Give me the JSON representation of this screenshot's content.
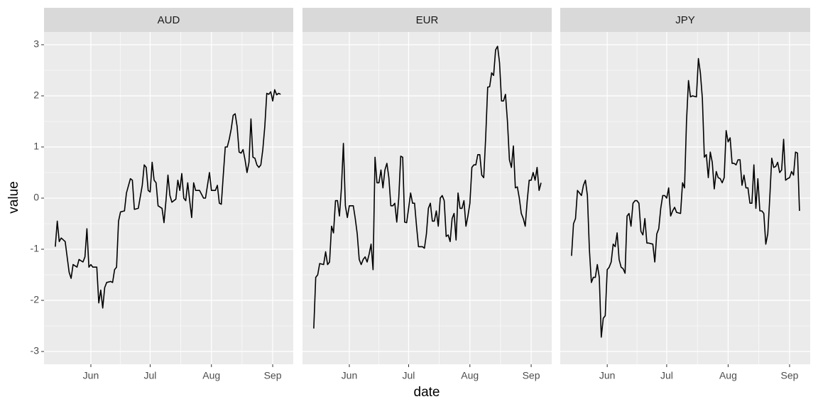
{
  "xlabel": "date",
  "ylabel": "value",
  "chart_data": [
    {
      "type": "line",
      "title": "AUD",
      "color": "#000000",
      "grid": true,
      "xlim": [
        128.3,
        254.4
      ],
      "xticks": [
        {
          "value": 152,
          "label": "Jun"
        },
        {
          "value": 182,
          "label": "Jul"
        },
        {
          "value": 213,
          "label": "Aug"
        },
        {
          "value": 244,
          "label": "Sep"
        }
      ],
      "ylim": [
        -3.25,
        3.25
      ],
      "yticks": [
        -3,
        -2,
        -1,
        0,
        1,
        2,
        3
      ],
      "x": [
        134,
        135,
        136,
        137,
        139,
        141,
        142,
        143,
        145,
        146,
        148,
        149,
        150,
        151,
        152,
        153,
        155,
        156,
        157,
        158,
        159,
        160,
        162,
        163,
        164,
        165,
        166,
        167,
        169,
        170,
        172,
        173,
        174,
        176,
        178,
        179,
        180,
        181,
        182,
        183,
        184,
        185,
        186,
        188,
        189,
        190,
        191,
        192,
        193,
        195,
        196,
        197,
        198,
        199,
        200,
        201,
        202,
        203,
        204,
        205,
        207,
        209,
        210,
        212,
        213,
        215,
        216,
        217,
        218,
        219,
        220,
        221,
        222,
        223,
        224,
        225,
        226,
        227,
        228,
        229,
        230,
        231,
        232,
        233,
        234,
        235,
        236,
        237,
        238,
        239,
        240,
        241,
        242,
        243,
        244,
        245,
        246,
        247,
        248
      ],
      "values": [
        -0.95,
        -0.45,
        -0.85,
        -0.78,
        -0.85,
        -1.45,
        -1.57,
        -1.3,
        -1.35,
        -1.2,
        -1.25,
        -1.15,
        -0.6,
        -1.35,
        -1.3,
        -1.35,
        -1.35,
        -2.05,
        -1.8,
        -2.15,
        -1.75,
        -1.65,
        -1.63,
        -1.65,
        -1.4,
        -1.35,
        -0.45,
        -0.27,
        -0.25,
        0.1,
        0.38,
        0.35,
        -0.22,
        -0.2,
        0.25,
        0.65,
        0.6,
        0.15,
        0.12,
        0.7,
        0.35,
        0.3,
        -0.15,
        -0.2,
        -0.48,
        -0.05,
        0.45,
        0.05,
        -0.08,
        -0.02,
        0.35,
        0.15,
        0.48,
        0.0,
        -0.05,
        0.3,
        -0.05,
        -0.38,
        0.3,
        0.15,
        0.15,
        0.0,
        0.0,
        0.5,
        0.15,
        0.15,
        0.25,
        -0.1,
        -0.12,
        0.45,
        1.0,
        1.0,
        1.15,
        1.35,
        1.62,
        1.65,
        1.4,
        0.9,
        0.88,
        0.95,
        0.75,
        0.5,
        0.7,
        1.55,
        0.8,
        0.78,
        0.65,
        0.6,
        0.65,
        0.95,
        1.4,
        2.05,
        2.03,
        2.08,
        1.9,
        2.12,
        2.02,
        2.05,
        2.03
      ]
    },
    {
      "type": "line",
      "title": "EUR",
      "color": "#000000",
      "grid": true,
      "xlim": [
        128.3,
        254.4
      ],
      "xticks": [
        {
          "value": 152,
          "label": "Jun"
        },
        {
          "value": 182,
          "label": "Jul"
        },
        {
          "value": 213,
          "label": "Aug"
        },
        {
          "value": 244,
          "label": "Sep"
        }
      ],
      "ylim": [
        -3.25,
        3.25
      ],
      "yticks": [
        -3,
        -2,
        -1,
        0,
        1,
        2,
        3
      ],
      "x": [
        134,
        135,
        136,
        137,
        139,
        140,
        141,
        142,
        143,
        144,
        145,
        146,
        147,
        148,
        149,
        150,
        151,
        152,
        154,
        155,
        156,
        157,
        158,
        159,
        160,
        161,
        162,
        163,
        164,
        165,
        166,
        167,
        168,
        169,
        170,
        171,
        172,
        173,
        174,
        175,
        176,
        177,
        178,
        179,
        180,
        181,
        182,
        183,
        184,
        185,
        186,
        187,
        189,
        190,
        191,
        192,
        193,
        194,
        195,
        196,
        197,
        198,
        199,
        200,
        201,
        202,
        203,
        204,
        205,
        206,
        207,
        208,
        209,
        210,
        211,
        212,
        213,
        214,
        215,
        216,
        217,
        218,
        219,
        220,
        221,
        222,
        223,
        224,
        225,
        226,
        227,
        228,
        229,
        230,
        231,
        232,
        233,
        234,
        235,
        236,
        237,
        238,
        239,
        240,
        241,
        242,
        243,
        244,
        245,
        246,
        247,
        248,
        249
      ],
      "values": [
        -2.55,
        -1.55,
        -1.5,
        -1.28,
        -1.3,
        -1.05,
        -1.3,
        -1.25,
        -0.55,
        -0.68,
        -0.05,
        -0.05,
        -0.35,
        0.2,
        1.07,
        -0.15,
        -0.38,
        -0.15,
        -0.15,
        -0.4,
        -0.7,
        -1.2,
        -1.3,
        -1.2,
        -1.15,
        -1.25,
        -1.1,
        -0.9,
        -1.4,
        0.8,
        0.3,
        0.3,
        0.55,
        0.2,
        0.55,
        0.68,
        0.4,
        -0.15,
        -0.15,
        -0.1,
        -0.47,
        0.0,
        0.82,
        0.8,
        -0.47,
        -0.48,
        -0.2,
        0.1,
        -0.1,
        -0.1,
        -0.55,
        -0.95,
        -0.95,
        -0.98,
        -0.7,
        -0.2,
        -0.1,
        -0.45,
        -0.45,
        -0.25,
        -0.55,
        0.0,
        0.05,
        -0.05,
        -0.75,
        -0.72,
        -0.85,
        -0.4,
        -0.3,
        -0.82,
        0.1,
        -0.2,
        -0.2,
        -0.05,
        -0.55,
        -0.35,
        -0.1,
        0.6,
        0.65,
        0.65,
        0.85,
        0.85,
        0.45,
        0.4,
        1.2,
        2.17,
        2.18,
        2.45,
        2.4,
        2.9,
        2.97,
        2.65,
        1.9,
        1.9,
        2.03,
        1.5,
        0.75,
        0.6,
        1.02,
        0.2,
        0.22,
        0.0,
        -0.3,
        -0.4,
        -0.55,
        -0.05,
        0.35,
        0.35,
        0.5,
        0.35,
        0.6,
        0.15,
        0.3
      ]
    },
    {
      "type": "line",
      "title": "JPY",
      "color": "#000000",
      "grid": true,
      "xlim": [
        128.3,
        254.4
      ],
      "xticks": [
        {
          "value": 152,
          "label": "Jun"
        },
        {
          "value": 182,
          "label": "Jul"
        },
        {
          "value": 213,
          "label": "Aug"
        },
        {
          "value": 244,
          "label": "Sep"
        }
      ],
      "ylim": [
        -3.25,
        3.25
      ],
      "yticks": [
        -3,
        -2,
        -1,
        0,
        1,
        2,
        3
      ],
      "x": [
        134,
        135,
        136,
        137,
        138,
        139,
        140,
        141,
        142,
        143,
        144,
        145,
        146,
        147,
        148,
        149,
        150,
        151,
        152,
        153,
        154,
        155,
        156,
        157,
        158,
        159,
        160,
        161,
        162,
        163,
        164,
        165,
        166,
        167,
        168,
        169,
        170,
        171,
        172,
        173,
        175,
        176,
        177,
        178,
        179,
        180,
        181,
        182,
        183,
        184,
        185,
        186,
        187,
        189,
        190,
        191,
        192,
        193,
        194,
        195,
        197,
        198,
        199,
        200,
        201,
        202,
        203,
        204,
        205,
        206,
        207,
        208,
        209,
        210,
        211,
        212,
        213,
        214,
        215,
        216,
        217,
        218,
        219,
        220,
        221,
        222,
        223,
        224,
        225,
        226,
        227,
        228,
        229,
        230,
        231,
        232,
        233,
        234,
        235,
        236,
        237,
        238,
        239,
        240,
        241,
        242,
        243,
        244,
        245,
        246,
        247,
        248,
        249
      ],
      "values": [
        -1.13,
        -0.5,
        -0.4,
        0.15,
        0.1,
        0.05,
        0.25,
        0.35,
        0.05,
        -1.0,
        -1.65,
        -1.55,
        -1.55,
        -1.3,
        -1.55,
        -2.72,
        -2.35,
        -2.3,
        -1.4,
        -1.35,
        -1.25,
        -0.9,
        -0.95,
        -0.68,
        -1.2,
        -1.35,
        -1.38,
        -1.47,
        -0.35,
        -0.3,
        -0.55,
        -0.1,
        -0.05,
        -0.05,
        -0.1,
        -0.65,
        -0.72,
        -0.4,
        -0.88,
        -0.88,
        -0.9,
        -1.25,
        -0.7,
        -0.6,
        -0.2,
        0.05,
        0.05,
        0.0,
        0.2,
        -0.35,
        -0.25,
        -0.18,
        -0.28,
        -0.3,
        0.3,
        0.2,
        1.5,
        2.3,
        1.98,
        2.0,
        1.98,
        2.73,
        2.45,
        1.95,
        0.8,
        0.85,
        0.4,
        0.9,
        0.7,
        0.18,
        0.52,
        0.4,
        0.38,
        0.3,
        0.4,
        1.32,
        1.1,
        1.18,
        0.68,
        0.68,
        0.65,
        0.75,
        0.75,
        0.25,
        0.45,
        0.2,
        0.2,
        -0.1,
        -0.1,
        0.65,
        -0.2,
        0.38,
        -0.25,
        -0.25,
        -0.3,
        -0.9,
        -0.7,
        0.0,
        0.78,
        0.6,
        0.62,
        0.7,
        0.5,
        0.55,
        1.15,
        0.35,
        0.38,
        0.4,
        0.52,
        0.45,
        0.9,
        0.88,
        -0.25
      ]
    }
  ]
}
